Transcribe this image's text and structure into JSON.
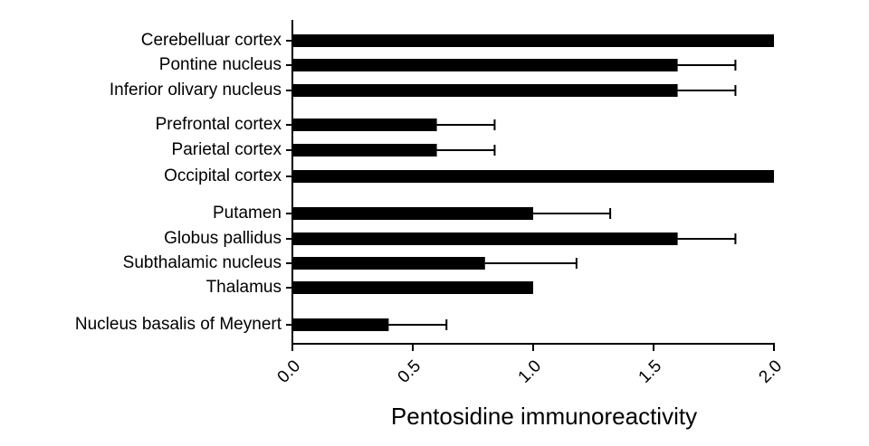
{
  "chart_data": {
    "type": "bar",
    "orientation": "horizontal",
    "categories": [
      "Cerebelluar cortex",
      "Pontine nucleus",
      "Inferior olivary nucleus",
      "Prefrontal cortex",
      "Parietal cortex",
      "Occipital cortex",
      "Putamen",
      "Globus pallidus",
      "Subthalamic nucleus",
      "Thalamus",
      "Nucleus basalis of Meynert"
    ],
    "values": [
      2.0,
      1.6,
      1.6,
      0.6,
      0.6,
      2.0,
      1.0,
      1.6,
      0.8,
      1.0,
      0.4
    ],
    "errors": [
      null,
      0.24,
      0.24,
      0.24,
      0.24,
      null,
      0.32,
      0.24,
      0.38,
      null,
      0.24
    ],
    "color": "#000000",
    "xlabel": "Pentosidine immunoreactivity",
    "xlim": [
      0,
      2
    ],
    "xticks": [
      {
        "value": 0,
        "label": "0.0"
      },
      {
        "value": 0.5,
        "label": "0.5"
      },
      {
        "value": 1,
        "label": "1.0"
      },
      {
        "value": 1.5,
        "label": "1.5"
      },
      {
        "value": 2,
        "label": "2.0"
      }
    ]
  }
}
